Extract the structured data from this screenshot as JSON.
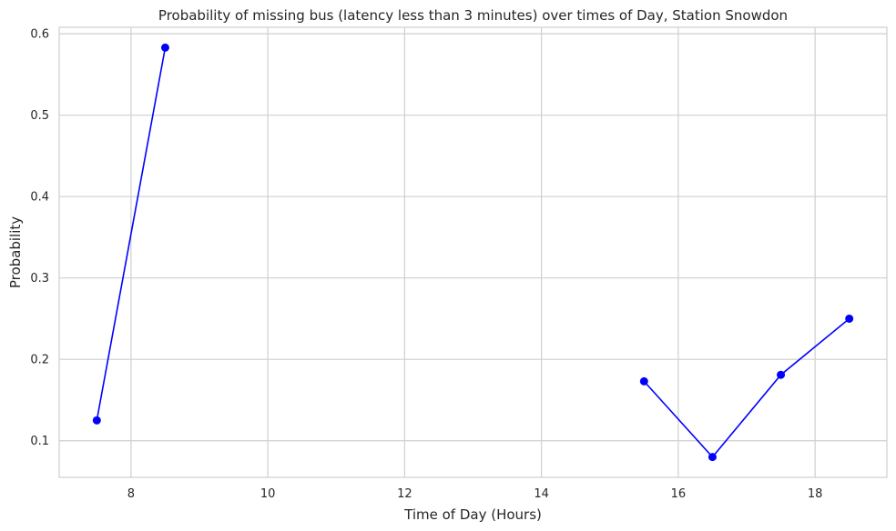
{
  "chart_data": {
    "type": "line",
    "title": "Probability of missing bus (latency less than 3 minutes) over times of Day, Station Snowdon",
    "xlabel": "Time of Day (Hours)",
    "ylabel": "Probability",
    "xlim": [
      6.95,
      19.05
    ],
    "ylim": [
      0.055,
      0.608
    ],
    "x_ticks": [
      8,
      10,
      12,
      14,
      16,
      18
    ],
    "y_ticks": [
      0.1,
      0.2,
      0.3,
      0.4,
      0.5,
      0.6
    ],
    "x_tick_labels": [
      "8",
      "10",
      "12",
      "14",
      "16",
      "18"
    ],
    "y_tick_labels": [
      "0.1",
      "0.2",
      "0.3",
      "0.4",
      "0.5",
      "0.6"
    ],
    "grid": true,
    "series": [
      {
        "color": "#0000ff",
        "marker": "circle",
        "segments": [
          [
            {
              "x": 7.5,
              "y": 0.125
            },
            {
              "x": 8.5,
              "y": 0.583
            }
          ],
          [
            {
              "x": 15.5,
              "y": 0.173
            },
            {
              "x": 16.5,
              "y": 0.08
            },
            {
              "x": 17.5,
              "y": 0.181
            },
            {
              "x": 18.5,
              "y": 0.25
            }
          ]
        ]
      }
    ]
  }
}
